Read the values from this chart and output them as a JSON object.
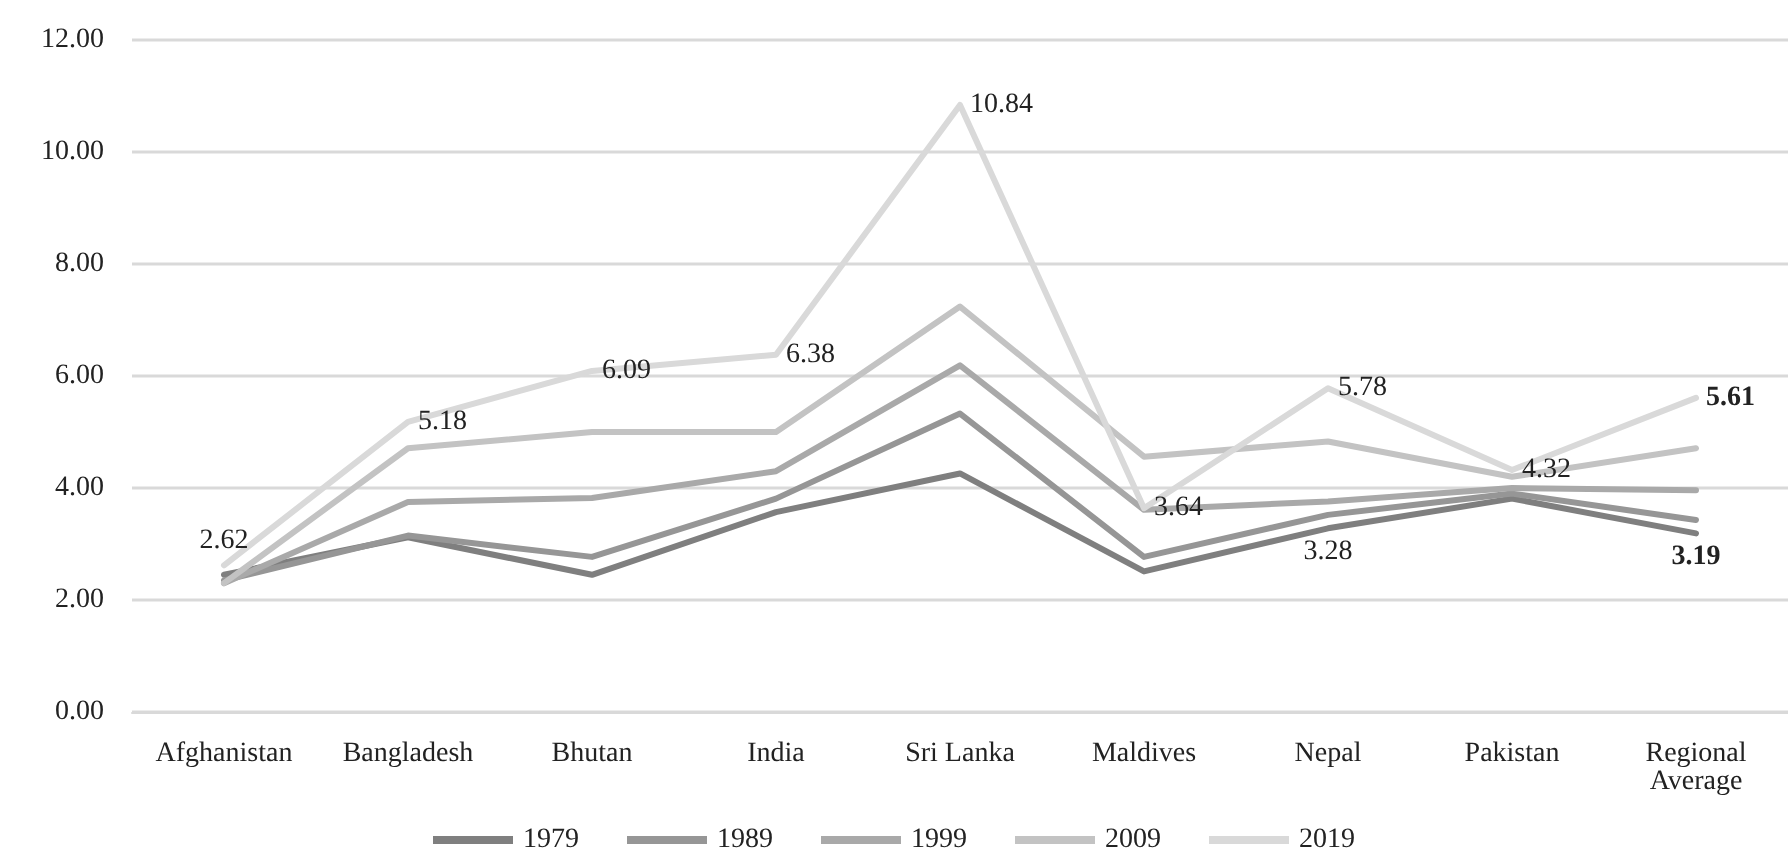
{
  "chart_data": {
    "type": "line",
    "categories": [
      "Afghanistan",
      "Bangladesh",
      "Bhutan",
      "India",
      "Sri Lanka",
      "Maldives",
      "Nepal",
      "Pakistan",
      "Regional Average"
    ],
    "series": [
      {
        "name": "1979",
        "color": "#7f7f7f",
        "values": [
          2.45,
          3.12,
          2.45,
          3.57,
          4.26,
          2.51,
          3.28,
          3.81,
          3.19
        ],
        "value_labels": [
          null,
          null,
          null,
          null,
          null,
          null,
          "3.28",
          null,
          "3.19"
        ]
      },
      {
        "name": "1989",
        "color": "#969696",
        "values": [
          2.35,
          3.15,
          2.77,
          3.81,
          5.33,
          2.77,
          3.52,
          3.9,
          3.43
        ]
      },
      {
        "name": "1999",
        "color": "#a9a9a9",
        "values": [
          2.3,
          3.75,
          3.82,
          4.3,
          6.19,
          3.61,
          3.76,
          4.0,
          3.96
        ]
      },
      {
        "name": "2009",
        "color": "#c3c3c3",
        "values": [
          2.3,
          4.71,
          5.0,
          5.0,
          7.24,
          4.56,
          4.83,
          4.2,
          4.71
        ]
      },
      {
        "name": "2019",
        "color": "#d9d9d9",
        "values": [
          2.62,
          5.18,
          6.09,
          6.38,
          10.84,
          3.64,
          5.78,
          4.32,
          5.61
        ],
        "value_labels": [
          "2.62",
          "5.18",
          "6.09",
          "6.38",
          "10.84",
          "3.64",
          "5.78",
          "4.32",
          "5.61"
        ]
      }
    ],
    "ylim": [
      0,
      12
    ],
    "yticks": [
      {
        "value": 0,
        "label": "0.00"
      },
      {
        "value": 2,
        "label": "2.00"
      },
      {
        "value": 4,
        "label": "4.00"
      },
      {
        "value": 6,
        "label": "6.00"
      },
      {
        "value": 8,
        "label": "8.00"
      },
      {
        "value": 10,
        "label": "10.00"
      },
      {
        "value": 12,
        "label": "12.00"
      }
    ],
    "grid": "y",
    "legend": "bottom",
    "marker": "none",
    "line_style": "solid"
  }
}
